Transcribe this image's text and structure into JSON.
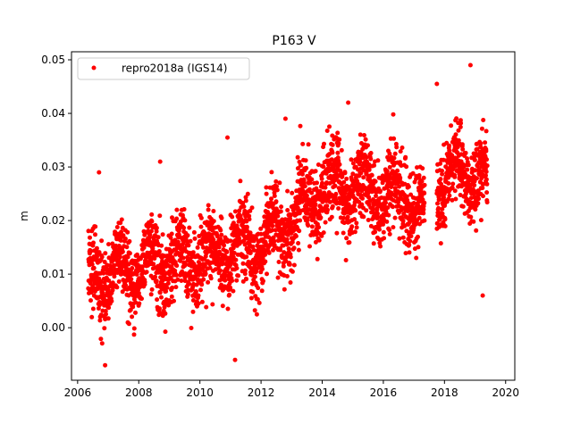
{
  "chart_data": {
    "type": "scatter",
    "title": "P163 V",
    "xlabel": "",
    "ylabel": "m",
    "xlim": [
      2005.8,
      2020.3
    ],
    "ylim": [
      -0.0098,
      0.0515
    ],
    "xticks": [
      2006,
      2008,
      2010,
      2012,
      2014,
      2016,
      2018,
      2020
    ],
    "xtick_labels": [
      "2006",
      "2008",
      "2010",
      "2012",
      "2014",
      "2016",
      "2018",
      "2020"
    ],
    "yticks": [
      0.0,
      0.01,
      0.02,
      0.03,
      0.04,
      0.05
    ],
    "ytick_labels": [
      "0.00",
      "0.01",
      "0.02",
      "0.03",
      "0.04",
      "0.05"
    ],
    "grid": false,
    "legend_position": "upper-left",
    "series": [
      {
        "name": "repro2018a (IGS14)",
        "color": "#ff0000",
        "marker": "circle",
        "trend": {
          "x": [
            2006.35,
            2008.0,
            2010.0,
            2012.0,
            2013.0,
            2014.0,
            2015.0,
            2016.0,
            2017.0,
            2017.35
          ],
          "y": [
            0.009,
            0.011,
            0.013,
            0.016,
            0.019,
            0.026,
            0.026,
            0.025,
            0.024,
            0.02
          ]
        },
        "trend2": {
          "x": [
            2017.75,
            2018.5,
            2019.4
          ],
          "y": [
            0.027,
            0.029,
            0.027
          ]
        },
        "notable_points": [
          {
            "x": 2006.7,
            "y": 0.029
          },
          {
            "x": 2006.9,
            "y": -0.007
          },
          {
            "x": 2008.7,
            "y": 0.031
          },
          {
            "x": 2010.9,
            "y": 0.0355
          },
          {
            "x": 2011.15,
            "y": -0.006
          },
          {
            "x": 2012.8,
            "y": 0.039
          },
          {
            "x": 2014.85,
            "y": 0.042
          },
          {
            "x": 2017.75,
            "y": 0.0455
          },
          {
            "x": 2018.85,
            "y": 0.049
          },
          {
            "x": 2019.25,
            "y": 0.006
          }
        ]
      }
    ]
  }
}
